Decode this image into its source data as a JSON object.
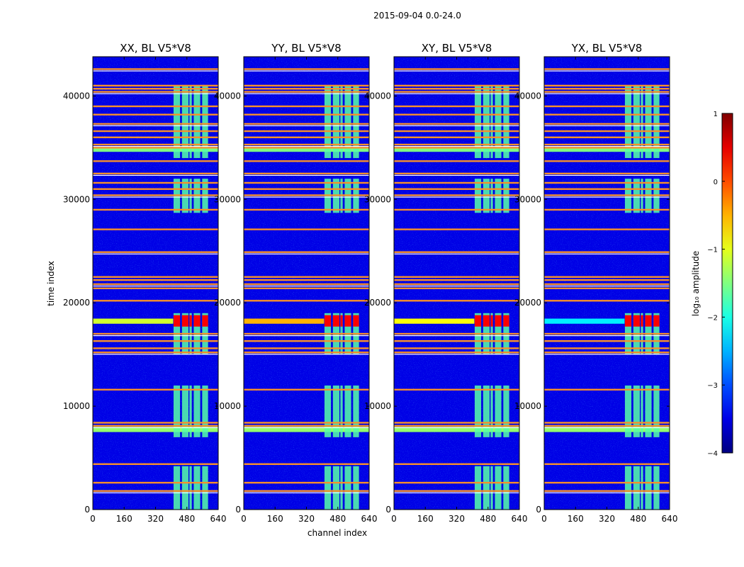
{
  "figure_title": "2015-09-04 0.0-24.0",
  "colors": {
    "background": "#ffffff",
    "rfi_line": "#f7902a",
    "white_gap": "#ffffff"
  },
  "chart_data": {
    "type": "heatmap",
    "x_axis_label": "channel index",
    "y_axis_label": "time index",
    "xlim": [
      0,
      640
    ],
    "ylim": [
      0,
      43800
    ],
    "x_ticks": [
      0,
      160,
      320,
      480,
      640
    ],
    "y_ticks": [
      0,
      10000,
      20000,
      30000,
      40000
    ],
    "panels": [
      {
        "title": "XX, BL V5*V8",
        "polarization": "XX",
        "cross_band_amplitude_log10": -1.1
      },
      {
        "title": "YY, BL V5*V8",
        "polarization": "YY",
        "cross_band_amplitude_log10": -0.5
      },
      {
        "title": "XY, BL V5*V8",
        "polarization": "XY",
        "cross_band_amplitude_log10": -0.9
      },
      {
        "title": "YX, BL V5*V8",
        "polarization": "YX",
        "cross_band_amplitude_log10": -2.2
      }
    ],
    "background_amplitude_log10": -3.5,
    "signal_channel_bands": [
      [
        412,
        445
      ],
      [
        455,
        488
      ],
      [
        493,
        505
      ],
      [
        515,
        548
      ],
      [
        558,
        588
      ]
    ],
    "signal_time_ranges": [
      [
        0,
        4200
      ],
      [
        7000,
        12000
      ],
      [
        15000,
        19000
      ],
      [
        28700,
        32000
      ],
      [
        34000,
        41000
      ]
    ],
    "strong_event": {
      "time_range": [
        17700,
        18800
      ],
      "amplitude_log10": 0.4
    },
    "rfi_time_lines": [
      1800,
      2600,
      4400,
      8100,
      8400,
      11600,
      15200,
      15600,
      16300,
      17000,
      20200,
      21400,
      21800,
      22200,
      22500,
      24900,
      27100,
      29000,
      30400,
      31000,
      31600,
      32500,
      33700,
      35000,
      35300,
      36000,
      36600,
      37300,
      38200,
      39000,
      40400,
      40700,
      41000,
      42600
    ],
    "broadband_bands": [
      {
        "time_range": [
          7500,
          8000
        ],
        "amplitude_log10": -1.4
      },
      {
        "time_range": [
          34600,
          35000
        ],
        "amplitude_log10": -1.5
      }
    ],
    "colorbar": {
      "label": "log₁₀ amplitude",
      "range": [
        -4,
        1
      ],
      "ticks": [
        1,
        0,
        -1,
        -2,
        -3,
        -4
      ],
      "colormap": "jet"
    }
  }
}
